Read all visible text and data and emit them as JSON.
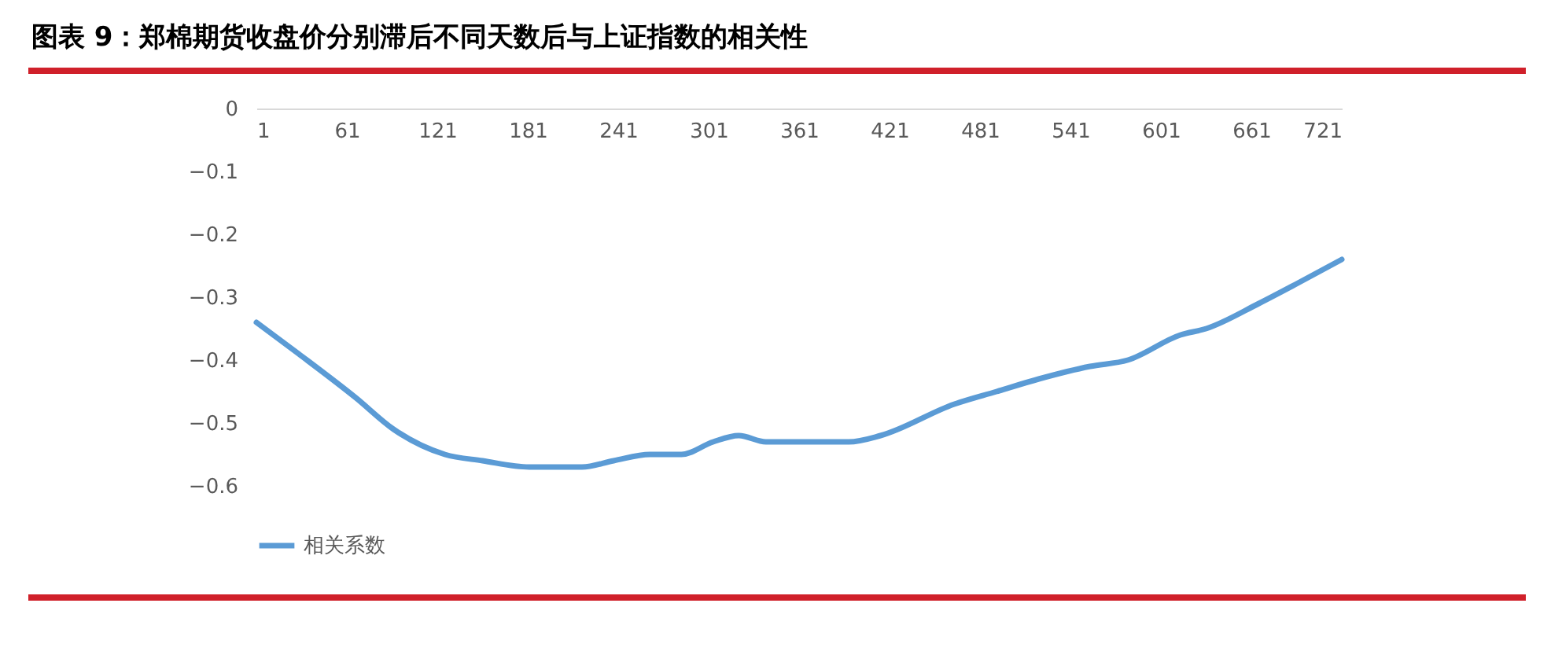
{
  "chart_data": {
    "type": "line",
    "title": "图表 9：郑棉期货收盘价分别滞后不同天数后与上证指数的相关性",
    "x": [
      1,
      29,
      67,
      92,
      126,
      151,
      182,
      217,
      238,
      262,
      283,
      304,
      321,
      339,
      370,
      394,
      415,
      464,
      492,
      520,
      554,
      579,
      614,
      631,
      666,
      690,
      721
    ],
    "series": [
      {
        "name": "相关系数",
        "color": "#5b9bd5",
        "values": [
          -0.34,
          -0.39,
          -0.46,
          -0.51,
          -0.55,
          -0.56,
          -0.57,
          -0.57,
          -0.56,
          -0.55,
          -0.55,
          -0.53,
          -0.52,
          -0.53,
          -0.53,
          -0.53,
          -0.52,
          -0.47,
          -0.45,
          -0.43,
          -0.41,
          -0.4,
          -0.36,
          -0.35,
          -0.31,
          -0.28,
          -0.24
        ]
      }
    ],
    "xlim": [
      1,
      721
    ],
    "xticks": [
      1,
      61,
      121,
      181,
      241,
      301,
      361,
      421,
      481,
      541,
      601,
      661,
      721
    ],
    "ylim": [
      -0.6,
      0
    ],
    "yticks": [
      0,
      -0.1,
      -0.2,
      -0.3,
      -0.4,
      -0.5,
      -0.6
    ],
    "grid": false,
    "legend": "bottom",
    "marker": "none",
    "line_style": "solid"
  }
}
